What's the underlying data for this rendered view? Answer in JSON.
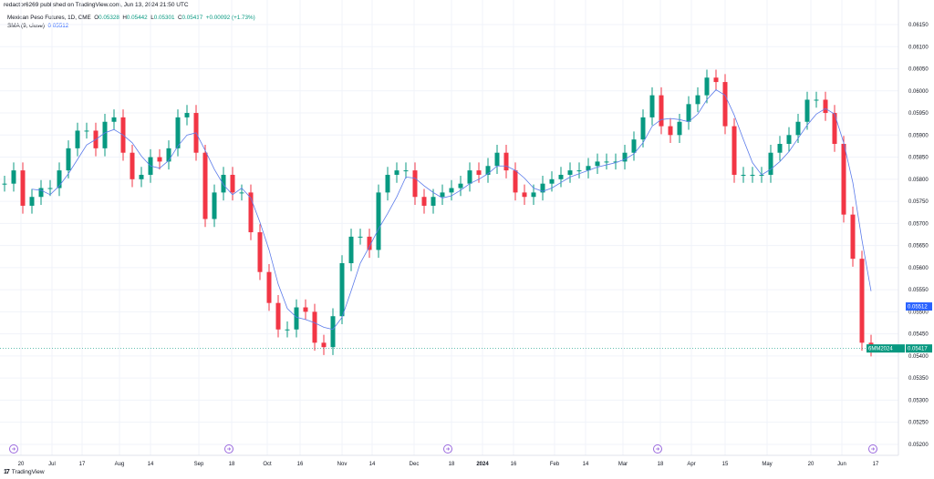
{
  "publisher": "redactor6269 published on TradingView.com, Jun 13, 2024 21:50 UTC",
  "legend": {
    "symbol": "Mexican Peso Futures, 1D, CME",
    "o_label": "O",
    "o": "0.05328",
    "h_label": "H",
    "h": "0.05442",
    "l_label": "L",
    "l": "0.05301",
    "c_label": "C",
    "c": "0.05417",
    "change": "+0.00092 (+1.73%)",
    "sma_label": "SMA (9, close)",
    "sma": "0.05512"
  },
  "price_badge": {
    "symbol": "6MM2024",
    "value": "0.05417",
    "sma_value": "0.05512"
  },
  "brand": "TradingView",
  "colors": {
    "up": "#089981",
    "down": "#f23645",
    "sma": "#5b7bea",
    "event": "#9c6ade"
  },
  "chart_data": {
    "type": "candlestick",
    "title": "Mexican Peso Futures, 1D, CME",
    "ylim": [
      0.0518,
      0.0617
    ],
    "yticks": [
      "0.06150",
      "0.06100",
      "0.06050",
      "0.06000",
      "0.05950",
      "0.05900",
      "0.05850",
      "0.05800",
      "0.05750",
      "0.05700",
      "0.05650",
      "0.05600",
      "0.05550",
      "0.05500",
      "0.05450",
      "0.05400",
      "0.05350",
      "0.05300",
      "0.05250",
      "0.05200"
    ],
    "xticks": [
      "20",
      "Jul",
      "17",
      "Aug",
      "14",
      "Sep",
      "18",
      "Oct",
      "16",
      "Nov",
      "14",
      "Dec",
      "18",
      "2024",
      "16",
      "Feb",
      "14",
      "Mar",
      "18",
      "Apr",
      "15",
      "May",
      "20",
      "Jun",
      "17"
    ],
    "grid": true,
    "close": [
      0.0579,
      0.0582,
      0.0574,
      0.0576,
      0.0578,
      0.0578,
      0.0582,
      0.0587,
      0.0591,
      0.0591,
      0.0587,
      0.0593,
      0.0594,
      0.0586,
      0.058,
      0.0581,
      0.0585,
      0.0584,
      0.0587,
      0.0594,
      0.0595,
      0.0586,
      0.0571,
      0.0577,
      0.0581,
      0.0577,
      0.0577,
      0.0568,
      0.0559,
      0.0552,
      0.0546,
      0.0546,
      0.0551,
      0.055,
      0.0543,
      0.0542,
      0.0549,
      0.0561,
      0.0567,
      0.0567,
      0.0564,
      0.0577,
      0.0581,
      0.0582,
      0.0582,
      0.0576,
      0.0574,
      0.0576,
      0.0577,
      0.0578,
      0.0579,
      0.0582,
      0.0581,
      0.0583,
      0.0586,
      0.0582,
      0.0577,
      0.0576,
      0.0577,
      0.0579,
      0.058,
      0.0581,
      0.0582,
      0.0582,
      0.0583,
      0.0584,
      0.0584,
      0.0584,
      0.0586,
      0.0589,
      0.0594,
      0.0599,
      0.0592,
      0.059,
      0.0593,
      0.0597,
      0.0599,
      0.0603,
      0.0602,
      0.0592,
      0.0581,
      0.0581,
      0.0581,
      0.0581,
      0.0586,
      0.0588,
      0.059,
      0.0593,
      0.0598,
      0.0598,
      0.0595,
      0.0588,
      0.0572,
      0.0562,
      0.0543,
      0.05417
    ],
    "sma_period": 9
  }
}
